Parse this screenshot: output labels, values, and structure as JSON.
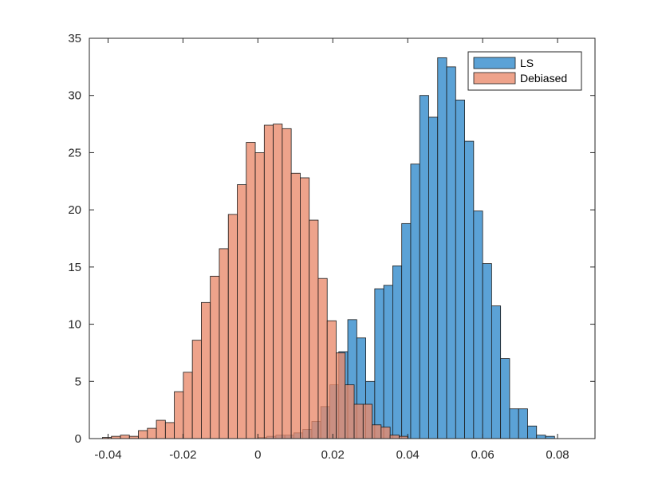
{
  "chart_data": {
    "type": "bar",
    "subtype": "overlapping-histogram",
    "xlim": [
      -0.045,
      0.09
    ],
    "ylim": [
      0,
      35
    ],
    "xticks": [
      -0.04,
      -0.02,
      0,
      0.02,
      0.04,
      0.06,
      0.08
    ],
    "xtick_labels": [
      "-0.04",
      "-0.02",
      "0",
      "0.02",
      "0.04",
      "0.06",
      "0.08"
    ],
    "yticks": [
      0,
      5,
      10,
      15,
      20,
      25,
      30,
      35
    ],
    "ytick_labels": [
      "0",
      "5",
      "10",
      "15",
      "20",
      "25",
      "30",
      "35"
    ],
    "grid": false,
    "legend_position": "top-right",
    "series": [
      {
        "name": "LS",
        "color": "#5BA2D6",
        "bin_width": 0.0024,
        "x_start": 0.0,
        "values": [
          0.1,
          0.2,
          0.3,
          0.3,
          0.5,
          0.8,
          1.5,
          2.8,
          4.7,
          7.6,
          10.4,
          8.8,
          5.0,
          13.1,
          13.4,
          15.1,
          18.8,
          24.0,
          30.0,
          28.1,
          33.3,
          32.5,
          29.6,
          26.0,
          19.9,
          15.3,
          11.6,
          7.0,
          2.6,
          2.6,
          1.1,
          0.3,
          0.2
        ]
      },
      {
        "name": "Debiased",
        "color": "#E9896A",
        "bin_width": 0.0024,
        "x_start": -0.0415,
        "values": [
          0.1,
          0.2,
          0.3,
          0.2,
          0.7,
          0.9,
          1.6,
          1.4,
          4.1,
          5.8,
          8.6,
          11.9,
          14.2,
          16.6,
          19.6,
          22.2,
          25.9,
          25.0,
          27.4,
          27.5,
          27.1,
          23.2,
          22.8,
          19.1,
          14.0,
          10.3,
          7.5,
          4.7,
          3.0,
          3.0,
          1.2,
          1.0,
          0.3,
          0.2
        ]
      }
    ]
  }
}
